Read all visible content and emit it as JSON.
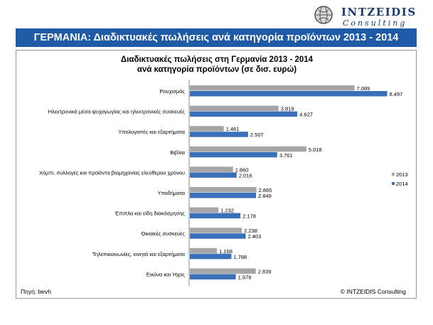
{
  "header": {
    "logo_name": "INTZEIDIS",
    "logo_sub": "Consulting",
    "banner_title": "ΓΕΡΜΑΝΙΑ: Διαδικτυακές πωλήσεις ανά κατηγορία προϊόντων 2013 - 2014"
  },
  "footer": {
    "source": "Πηγή: bevh",
    "copyright": "© INTZEIDIS Consulting"
  },
  "colors": {
    "banner": "#1f5aa6",
    "series_2013": "#a6a6a6",
    "series_2014": "#3a6fb9"
  },
  "chart_data": {
    "type": "bar",
    "orientation": "horizontal",
    "title": "Διαδικτυακές πωλήσεις στη Γερμανία 2013 - 2014",
    "subtitle": "ανά κατηγορία προϊόντων (σε δισ. ευρώ)",
    "xlim": [
      0,
      9
    ],
    "grid": false,
    "legend_position": "right",
    "categories": [
      "Ρουχισμός",
      "Ηλεκτρονικά μέσα ψυχαγωγίας και ηλεκτρονικές συσκευές",
      "Υπολογιστές και εξαρτήματα",
      "Βιβλία",
      "Χόμπι, συλλογές και προϊόντα βιομηχανίας ελεύθερου χρόνου",
      "Υποδήματα",
      "Έπιπλα και είδη διακόσμησης",
      "Οικιακές συσκευές",
      "Τηλεπικοινωνίες, κινητά και εξαρτήματα",
      "Εικόνα και Ήχος"
    ],
    "series": [
      {
        "name": "2013",
        "values": [
          7.089,
          3.819,
          1.461,
          5.018,
          1.86,
          2.865,
          1.232,
          2.238,
          1.168,
          2.839
        ],
        "labels": [
          "7.089",
          "3.819",
          "1.461",
          "5.018",
          "1.860",
          "2.865",
          "1.232",
          "2.238",
          "1.168",
          "2.839"
        ]
      },
      {
        "name": "2014",
        "values": [
          8.497,
          4.627,
          2.507,
          3.761,
          2.016,
          2.849,
          2.178,
          2.403,
          1.788,
          1.979
        ],
        "labels": [
          "8.497",
          "4.627",
          "2.507",
          "3.761",
          "2.016",
          "2.849",
          "2.178",
          "2.403",
          "1.788",
          "1.979"
        ]
      }
    ]
  }
}
